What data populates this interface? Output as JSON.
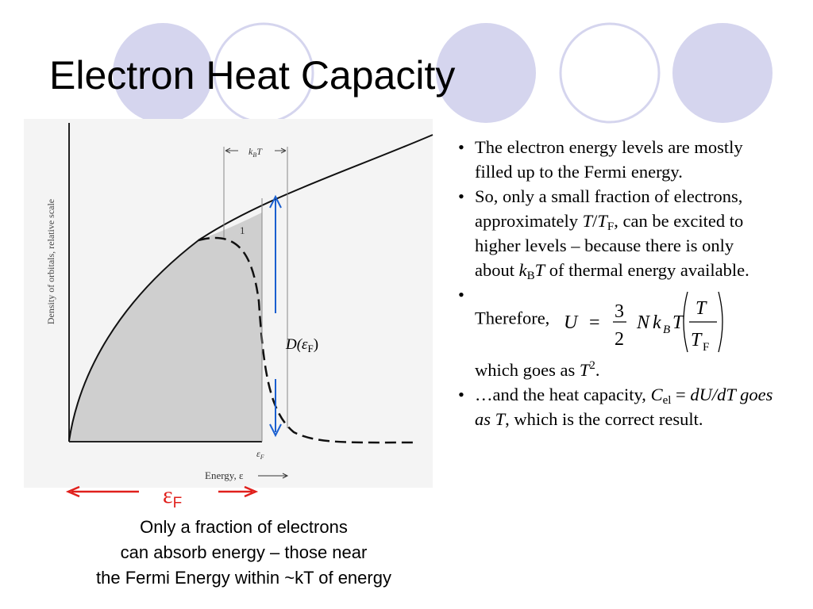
{
  "title": "Electron Heat Capacity",
  "figure": {
    "y_axis_label": "Density of orbitals, relative scale",
    "width_label": {
      "k": "k",
      "sub": "B",
      "T": "T"
    },
    "region_label": "1",
    "fermi_tick": {
      "main": "ε",
      "sub": "F"
    },
    "x_axis_label": "Energy, ε",
    "dos_label": {
      "main": "D(ε",
      "sub": "F",
      "end": ")"
    },
    "fermi_marker": {
      "main": "ε",
      "sub": "F"
    },
    "caption": [
      "Only a fraction of electrons",
      "can absorb energy – those near",
      "the Fermi Energy within ~kT of energy"
    ]
  },
  "bullets": [
    [
      {
        "text": "The electron energy levels are mostly filled  up to the Fermi energy."
      }
    ],
    [
      {
        "text": "So, only a small fraction of electrons, approximately "
      },
      {
        "text": "T",
        "style": "i"
      },
      {
        "text": "/"
      },
      {
        "text": "T",
        "style": "i"
      },
      {
        "text": "F",
        "style": "sub"
      },
      {
        "text": ", can be excited to higher levels – because there is only about "
      },
      {
        "text": "k",
        "style": "i"
      },
      {
        "text": "B",
        "style": "sub"
      },
      {
        "text": "T",
        "style": "i"
      },
      {
        "text": " of thermal energy available."
      }
    ],
    [
      {
        "text": "Therefore, "
      },
      {
        "text": "formula"
      },
      {
        "text": "which goes as "
      },
      {
        "text": "T",
        "style": "i"
      },
      {
        "text": "2",
        "style": "sup"
      },
      {
        "text": "."
      }
    ],
    [
      {
        "text": "…and the heat capacity, "
      },
      {
        "text": "C",
        "style": "i"
      },
      {
        "text": "el",
        "style": "sub"
      },
      {
        "text": " = "
      },
      {
        "text": "dU/dT goes as T",
        "style": "i"
      },
      {
        "text": ", which is the correct result."
      }
    ]
  ],
  "formula": [
    "U",
    "=",
    "3",
    "2",
    "N",
    "k",
    "B",
    "T",
    "T",
    "T",
    "F"
  ]
}
